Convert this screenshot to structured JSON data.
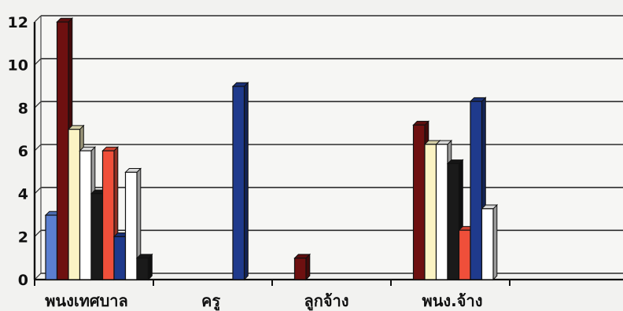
{
  "chart_data": {
    "type": "bar",
    "style": "3d-clustered",
    "categories": [
      "พนงเทศบาล",
      "ครู",
      "ลูกจ้าง",
      "พนง.จ้าง"
    ],
    "ylim": [
      0,
      12
    ],
    "yticks": [
      0,
      2,
      4,
      6,
      8,
      10,
      12
    ],
    "grid": true,
    "legend": "none",
    "series": [
      {
        "color": "#5b7fd0",
        "values": [
          3,
          0,
          0,
          0
        ]
      },
      {
        "color": "#6e1010",
        "values": [
          12,
          0,
          1,
          7.2
        ]
      },
      {
        "color": "#fbf3c4",
        "values": [
          7,
          0,
          0,
          6.3
        ]
      },
      {
        "color": "#ffffff",
        "values": [
          6,
          0,
          0,
          6.3
        ]
      },
      {
        "color": "#1a1a1a",
        "values": [
          4,
          0,
          0,
          5.4
        ]
      },
      {
        "color": "#ef4f3a",
        "values": [
          6,
          0,
          0,
          2.3
        ]
      },
      {
        "color": "#1f3a8c",
        "values": [
          2,
          9,
          0,
          8.3
        ]
      },
      {
        "color": "#ffffff",
        "values": [
          5,
          0,
          0,
          3.3
        ]
      },
      {
        "color": "#1a1a1a",
        "values": [
          1,
          0,
          0,
          0
        ]
      }
    ]
  }
}
